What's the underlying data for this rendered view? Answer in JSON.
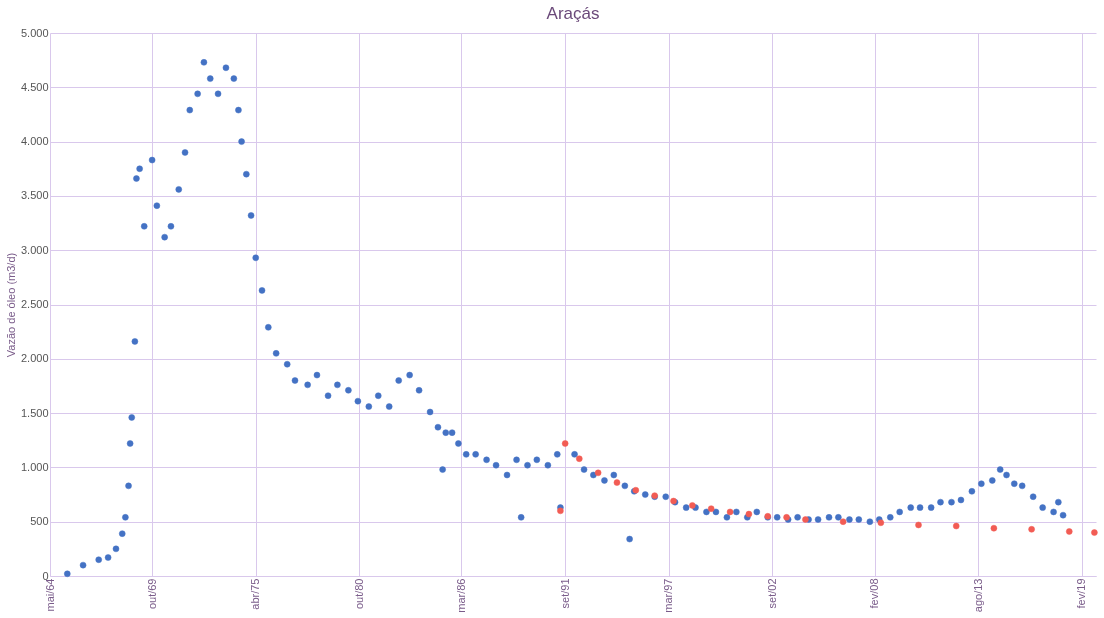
{
  "chart_data": {
    "type": "scatter",
    "title": "Araçás",
    "ylabel": "Vazão de óleo (m3/d)",
    "xlim": [
      "1964-05-01",
      "2019-11-01"
    ],
    "xticks": [
      {
        "value": "1964-05-01",
        "label": "mai/64"
      },
      {
        "value": "1969-10-01",
        "label": "out/69"
      },
      {
        "value": "1975-04-01",
        "label": "abr/75"
      },
      {
        "value": "1980-10-01",
        "label": "out/80"
      },
      {
        "value": "1986-03-01",
        "label": "mar/86"
      },
      {
        "value": "1991-09-01",
        "label": "set/91"
      },
      {
        "value": "1997-03-01",
        "label": "mar/97"
      },
      {
        "value": "2002-09-01",
        "label": "set/02"
      },
      {
        "value": "2008-02-01",
        "label": "fev/08"
      },
      {
        "value": "2013-08-01",
        "label": "ago/13"
      },
      {
        "value": "2019-02-01",
        "label": "fev/19"
      }
    ],
    "ylim": [
      0,
      5000
    ],
    "yticks": [
      0,
      500,
      {
        "value": 1000,
        "label": "1.000"
      },
      {
        "value": 1500,
        "label": "1.500"
      },
      {
        "value": 2000,
        "label": "2.000"
      },
      {
        "value": 2500,
        "label": "2.500"
      },
      {
        "value": 3000,
        "label": "3.000"
      },
      {
        "value": 3500,
        "label": "3.500"
      },
      {
        "value": 4000,
        "label": "4.000"
      },
      {
        "value": 4500,
        "label": "4.500"
      },
      {
        "value": 5000,
        "label": "5.000"
      }
    ],
    "grid": true,
    "marker": "circle",
    "series": [
      {
        "color": "#4472c4",
        "x": [
          "1965-04",
          "1966-02",
          "1966-12",
          "1967-06",
          "1967-11",
          "1968-03",
          "1968-05",
          "1968-07",
          "1968-08",
          "1968-09",
          "1968-11",
          "1968-12",
          "1969-02",
          "1969-05",
          "1969-10",
          "1970-01",
          "1970-06",
          "1970-10",
          "1971-03",
          "1971-07",
          "1971-10",
          "1972-03",
          "1972-07",
          "1972-11",
          "1973-04",
          "1973-09",
          "1974-02",
          "1974-05",
          "1974-07",
          "1974-10",
          "1975-01",
          "1975-04",
          "1975-08",
          "1975-12",
          "1976-05",
          "1976-12",
          "1977-05",
          "1978-01",
          "1978-07",
          "1979-02",
          "1979-08",
          "1980-03",
          "1980-09",
          "1981-04",
          "1981-10",
          "1982-05",
          "1982-11",
          "1983-06",
          "1983-12",
          "1984-07",
          "1984-12",
          "1985-03",
          "1985-05",
          "1985-09",
          "1986-01",
          "1986-06",
          "1986-12",
          "1987-07",
          "1988-01",
          "1988-08",
          "1989-02",
          "1989-05",
          "1989-09",
          "1990-03",
          "1990-10",
          "1991-04",
          "1991-06",
          "1991-09",
          "1992-03",
          "1992-09",
          "1993-03",
          "1993-10",
          "1994-04",
          "1994-11",
          "1995-02",
          "1995-05",
          "1995-12",
          "1996-06",
          "1997-01",
          "1997-07",
          "1998-02",
          "1998-08",
          "1999-03",
          "1999-09",
          "2000-04",
          "2000-10",
          "2001-05",
          "2001-11",
          "2002-06",
          "2002-12",
          "2003-07",
          "2004-01",
          "2004-08",
          "2005-02",
          "2005-09",
          "2006-03",
          "2006-10",
          "2007-04",
          "2007-11",
          "2008-05",
          "2008-12",
          "2009-06",
          "2010-01",
          "2010-07",
          "2011-02",
          "2011-08",
          "2012-03",
          "2012-09",
          "2013-04",
          "2013-10",
          "2014-05",
          "2014-10",
          "2015-02",
          "2015-07",
          "2015-12",
          "2016-07",
          "2017-01",
          "2017-08",
          "2017-11",
          "2018-02"
        ],
        "values": [
          20,
          100,
          150,
          170,
          250,
          390,
          540,
          830,
          1220,
          1460,
          2160,
          3660,
          3750,
          3220,
          3830,
          3410,
          3120,
          3220,
          3560,
          3900,
          4290,
          4440,
          4730,
          4580,
          4440,
          4680,
          4580,
          4290,
          4000,
          3700,
          3320,
          2930,
          2630,
          2290,
          2050,
          1950,
          1800,
          1760,
          1850,
          1660,
          1760,
          1710,
          1610,
          1560,
          1660,
          1560,
          1800,
          1850,
          1710,
          1510,
          1370,
          980,
          1320,
          1320,
          1220,
          1120,
          1120,
          1070,
          1020,
          930,
          1070,
          540,
          1020,
          1070,
          1020,
          1120,
          630,
          null,
          1120,
          980,
          930,
          880,
          930,
          830,
          340,
          780,
          750,
          730,
          730,
          680,
          630,
          630,
          590,
          590,
          540,
          590,
          540,
          590,
          540,
          540,
          520,
          540,
          520,
          520,
          540,
          540,
          520,
          520,
          500,
          520,
          540,
          590,
          630,
          630,
          630,
          680,
          680,
          700,
          780,
          850,
          880,
          980,
          930,
          850,
          830,
          730,
          630,
          590,
          680,
          560
        ]
      },
      {
        "color": "#f25c54",
        "x": [
          "1991-06",
          "1991-09",
          "1992-06",
          "1993-06",
          "1994-06",
          "1995-06",
          "1996-06",
          "1997-06",
          "1998-06",
          "1999-06",
          "2000-06",
          "2001-06",
          "2002-06",
          "2003-06",
          "2004-06",
          "2006-06",
          "2008-06",
          "2010-06",
          "2012-06",
          "2014-06",
          "2016-06",
          "2018-06",
          "2019-10"
        ],
        "values": [
          600,
          1220,
          1080,
          950,
          860,
          790,
          740,
          690,
          650,
          620,
          590,
          570,
          550,
          540,
          520,
          500,
          490,
          470,
          460,
          440,
          430,
          410,
          400
        ]
      }
    ]
  }
}
